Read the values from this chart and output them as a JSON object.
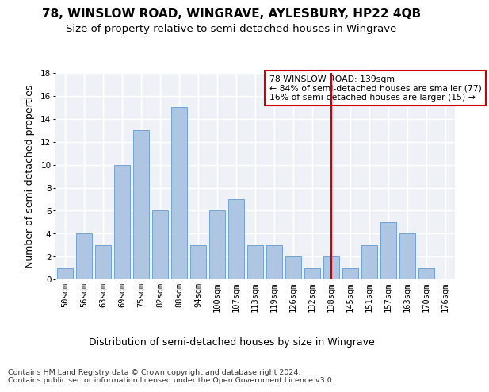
{
  "title": "78, WINSLOW ROAD, WINGRAVE, AYLESBURY, HP22 4QB",
  "subtitle": "Size of property relative to semi-detached houses in Wingrave",
  "xlabel": "Distribution of semi-detached houses by size in Wingrave",
  "ylabel": "Number of semi-detached properties",
  "categories": [
    "50sqm",
    "56sqm",
    "63sqm",
    "69sqm",
    "75sqm",
    "82sqm",
    "88sqm",
    "94sqm",
    "100sqm",
    "107sqm",
    "113sqm",
    "119sqm",
    "126sqm",
    "132sqm",
    "138sqm",
    "145sqm",
    "151sqm",
    "157sqm",
    "163sqm",
    "170sqm",
    "176sqm"
  ],
  "values": [
    1,
    4,
    3,
    10,
    13,
    6,
    15,
    3,
    6,
    7,
    3,
    3,
    2,
    1,
    2,
    1,
    3,
    5,
    4,
    1,
    0
  ],
  "bar_color": "#aec6e0",
  "bar_edge_color": "#6699cc",
  "background_color": "#eef2f7",
  "grid_color": "#ffffff",
  "red_line_index": 14,
  "red_line_color": "#cc0000",
  "annotation_text": "78 WINSLOW ROAD: 139sqm\n← 84% of semi-detached houses are smaller (77)\n16% of semi-detached houses are larger (15) →",
  "annotation_box_color": "#cc0000",
  "footer_text": "Contains HM Land Registry data © Crown copyright and database right 2024.\nContains public sector information licensed under the Open Government Licence v3.0.",
  "ylim": [
    0,
    18
  ],
  "title_fontsize": 11,
  "subtitle_fontsize": 9.5,
  "axis_label_fontsize": 9,
  "tick_fontsize": 7.5,
  "footer_fontsize": 6.8,
  "yticks": [
    0,
    2,
    4,
    6,
    8,
    10,
    12,
    14,
    16,
    18
  ]
}
